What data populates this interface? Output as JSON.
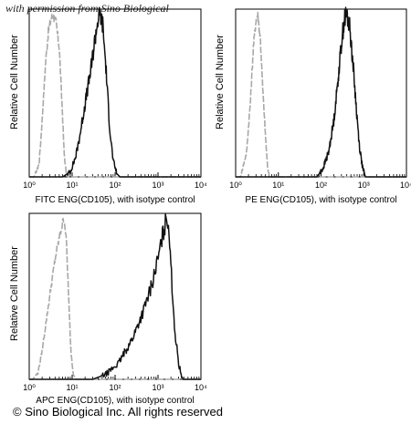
{
  "header": {
    "permission_text": "with permission from Sino Biological"
  },
  "footer": {
    "copyright": "© Sino Biological Inc. All rights reserved"
  },
  "colors": {
    "isotype": "#a8a8a8",
    "sample": "#111111",
    "axis": "#000000"
  },
  "chart_data": [
    {
      "type": "histogram",
      "ylabel": "Relative Cell Number",
      "xlabel": "FITC ENG(CD105), with isotype control",
      "xscale": "log",
      "xlim": [
        1,
        10000
      ],
      "xticks": [
        "10⁰",
        "10¹",
        "10²",
        "10³",
        "10⁴"
      ],
      "series": [
        {
          "role": "isotype control",
          "line": "gray dashed",
          "points": [
            [
              1.3,
              0
            ],
            [
              1.7,
              0.08
            ],
            [
              2.0,
              0.35
            ],
            [
              2.4,
              0.7
            ],
            [
              2.8,
              0.9
            ],
            [
              3.2,
              0.97
            ],
            [
              3.6,
              1.0
            ],
            [
              4.2,
              0.95
            ],
            [
              5.0,
              0.8
            ],
            [
              5.8,
              0.45
            ],
            [
              6.5,
              0.15
            ],
            [
              7.2,
              0.03
            ],
            [
              8.0,
              0
            ]
          ]
        },
        {
          "role": "sample",
          "line": "black",
          "points": [
            [
              6,
              0
            ],
            [
              9,
              0.03
            ],
            [
              12,
              0.12
            ],
            [
              15,
              0.25
            ],
            [
              20,
              0.45
            ],
            [
              27,
              0.65
            ],
            [
              34,
              0.85
            ],
            [
              40,
              0.97
            ],
            [
              45,
              1.0
            ],
            [
              52,
              0.93
            ],
            [
              62,
              0.65
            ],
            [
              75,
              0.3
            ],
            [
              90,
              0.1
            ],
            [
              110,
              0.02
            ],
            [
              130,
              0
            ]
          ]
        }
      ]
    },
    {
      "type": "histogram",
      "ylabel": "Relative Cell Number",
      "xlabel": "PE ENG(CD105), with isotype control",
      "xscale": "log",
      "xlim": [
        1,
        10000
      ],
      "xticks": [
        "10⁰",
        "10¹",
        "10²",
        "10³",
        "10⁴"
      ],
      "series": [
        {
          "role": "isotype control",
          "line": "gray dashed",
          "points": [
            [
              1.3,
              0
            ],
            [
              1.8,
              0.15
            ],
            [
              2.2,
              0.45
            ],
            [
              2.6,
              0.8
            ],
            [
              3.0,
              0.97
            ],
            [
              3.3,
              1.0
            ],
            [
              3.8,
              0.85
            ],
            [
              4.3,
              0.55
            ],
            [
              5.0,
              0.25
            ],
            [
              5.6,
              0.06
            ],
            [
              6.2,
              0
            ]
          ]
        },
        {
          "role": "sample",
          "line": "black",
          "points": [
            [
              80,
              0
            ],
            [
              110,
              0.05
            ],
            [
              150,
              0.15
            ],
            [
              200,
              0.35
            ],
            [
              250,
              0.6
            ],
            [
              300,
              0.82
            ],
            [
              350,
              0.97
            ],
            [
              400,
              1.0
            ],
            [
              470,
              0.92
            ],
            [
              560,
              0.7
            ],
            [
              680,
              0.4
            ],
            [
              800,
              0.18
            ],
            [
              950,
              0.05
            ],
            [
              1100,
              0
            ]
          ]
        }
      ]
    },
    {
      "type": "histogram",
      "ylabel": "Relative Cell Number",
      "xlabel": "APC ENG(CD105), with isotype control",
      "xscale": "log",
      "xlim": [
        1,
        10000
      ],
      "xticks": [
        "10⁰",
        "10¹",
        "10²",
        "10³",
        "10⁴"
      ],
      "series": [
        {
          "role": "isotype control",
          "line": "gray dashed",
          "points": [
            [
              1.2,
              0
            ],
            [
              1.6,
              0.04
            ],
            [
              2.0,
              0.18
            ],
            [
              2.6,
              0.4
            ],
            [
              3.4,
              0.62
            ],
            [
              4.2,
              0.78
            ],
            [
              5.0,
              0.88
            ],
            [
              5.8,
              0.96
            ],
            [
              6.5,
              1.0
            ],
            [
              7.2,
              0.9
            ],
            [
              8.2,
              0.55
            ],
            [
              9.2,
              0.2
            ],
            [
              10.5,
              0.04
            ],
            [
              12,
              0
            ]
          ]
        },
        {
          "role": "sample",
          "line": "black",
          "points": [
            [
              30,
              0
            ],
            [
              60,
              0.03
            ],
            [
              120,
              0.1
            ],
            [
              250,
              0.25
            ],
            [
              450,
              0.42
            ],
            [
              700,
              0.58
            ],
            [
              1000,
              0.75
            ],
            [
              1300,
              0.9
            ],
            [
              1550,
              0.99
            ],
            [
              1700,
              1.0
            ],
            [
              1850,
              0.9
            ],
            [
              2100,
              0.6
            ],
            [
              2500,
              0.28
            ],
            [
              3100,
              0.08
            ],
            [
              3800,
              0
            ]
          ]
        }
      ]
    }
  ]
}
